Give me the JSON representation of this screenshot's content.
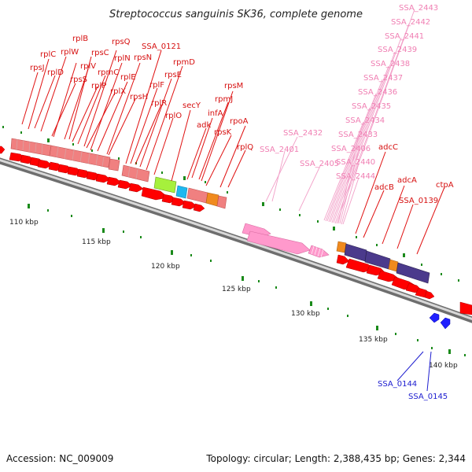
{
  "title": "Streptococcus sanguinis SK36, complete genome",
  "footer": {
    "accession": "Accession: NC_009009",
    "summary": "Topology: circular; Length: 2,388,435 bp; Genes: 2,344"
  },
  "position_ticks": [
    "110 kbp",
    "115 kbp",
    "120 kbp",
    "125 kbp",
    "130 kbp",
    "135 kbp",
    "140 kbp"
  ],
  "colors": {
    "ribosomal_gene": "#f08080",
    "forward_cds": "#ff0000",
    "reverse_cds": "#2020ff",
    "rna_gene": "#ff99cc",
    "green_gene": "#a6f03c",
    "cyan_gene": "#1eb8f0",
    "orange_gene": "#f08a1e",
    "purple_gene": "#4b3a8c",
    "backbone": "#9a9a9a",
    "tick": "#1a8a1a"
  },
  "gene_labels": {
    "red": [
      "rplB",
      "rpsQ",
      "SSA_0121",
      "rplC",
      "rplW",
      "rpsC",
      "rplN",
      "rpsN",
      "rpmD",
      "rpsJ",
      "rplD",
      "rplV",
      "rpmC",
      "rpsS",
      "rplP",
      "rplE",
      "rplF",
      "rpsE",
      "rplX",
      "rpsH",
      "rplR",
      "secY",
      "rplO",
      "rpsM",
      "rpmJ",
      "infA",
      "adk",
      "rpsK",
      "rpoA",
      "rplQ",
      "adcC",
      "adcB",
      "adcA",
      "SSA_0139",
      "ctpA"
    ],
    "pink": [
      "SSA_2443",
      "SSA_2442",
      "SSA_2441",
      "SSA_2439",
      "SSA_2438",
      "SSA_2437",
      "SSA_2436",
      "SSA_2435",
      "SSA_2434",
      "SSA_2433",
      "SSA_2432",
      "SSA_2401",
      "SSA_2406",
      "SSA_2405",
      "SSA_2440",
      "SSA_2444"
    ],
    "blue": [
      "SSA_0144",
      "SSA_0145"
    ]
  }
}
